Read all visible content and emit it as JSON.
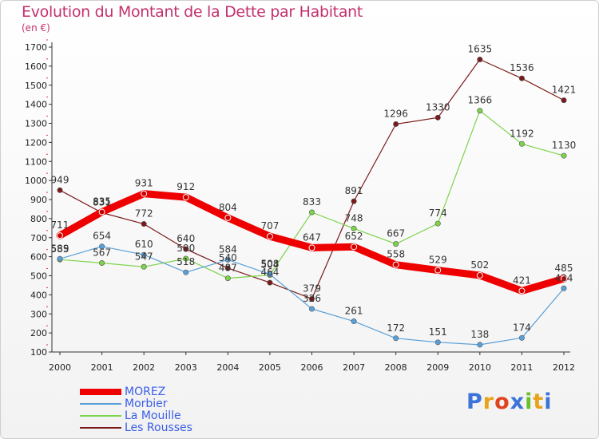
{
  "header": {
    "title": "Evolution du Montant de la Dette par Habitant",
    "subtitle": "(en €)"
  },
  "logo": {
    "text": "Proxiti",
    "letter_colors": [
      "#3b73d9",
      "#e9a21a",
      "#e0431f",
      "#3b73d9",
      "#6bbf2c",
      "#e9a21a",
      "#3b73d9"
    ]
  },
  "chart_data": {
    "type": "line",
    "title": "Evolution du Montant de la Dette par Habitant",
    "subtitle": "(en €)",
    "x": [
      "2000",
      "2001",
      "2002",
      "2003",
      "2004",
      "2005",
      "2006",
      "2007",
      "2008",
      "2009",
      "2010",
      "2011",
      "2012"
    ],
    "y_ticks": [
      "100",
      "200",
      "300",
      "400",
      "500",
      "600",
      "700",
      "800",
      "900",
      "1000",
      "1100",
      "1200",
      "1300",
      "1400",
      "1500",
      "1600",
      "1700"
    ],
    "ylim": [
      100,
      1700
    ],
    "grid": false,
    "legend_position": "bottom-left",
    "series": [
      {
        "name": "MOREZ",
        "color": "#ee0000",
        "values": [
          711,
          835,
          931,
          912,
          804,
          707,
          647,
          652,
          558,
          529,
          502,
          421,
          485
        ]
      },
      {
        "name": "Morbier",
        "color": "#5aa0d8",
        "values": [
          589,
          654,
          610,
          518,
          584,
          508,
          326,
          261,
          172,
          151,
          138,
          174,
          434
        ]
      },
      {
        "name": "La Mouille",
        "color": "#7dd34a",
        "values": [
          585,
          567,
          547,
          590,
          487,
          504,
          833,
          748,
          667,
          774,
          1366,
          1192,
          1130
        ]
      },
      {
        "name": "Les Rousses",
        "color": "#7a1a1a",
        "values": [
          949,
          831,
          772,
          640,
          540,
          464,
          379,
          891,
          1296,
          1330,
          1635,
          1536,
          1421
        ]
      }
    ]
  }
}
